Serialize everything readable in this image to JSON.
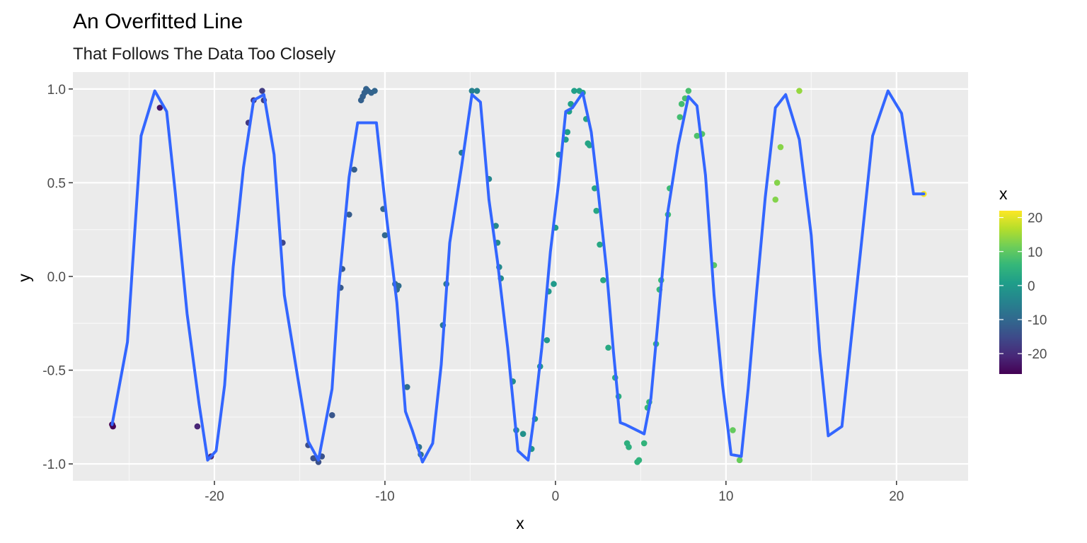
{
  "chart_data": {
    "type": "scatter",
    "title": "An Overfitted Line",
    "subtitle": "That Follows The Data Too Closely",
    "xlabel": "x",
    "ylabel": "y",
    "xlim": [
      -28.3,
      24.2
    ],
    "ylim": [
      -1.09,
      1.09
    ],
    "x_ticks": [
      -20,
      -10,
      0,
      10,
      20
    ],
    "x_tick_labels": [
      "-20",
      "-10",
      "0",
      "10",
      "20"
    ],
    "y_ticks": [
      -1.0,
      -0.5,
      0.0,
      0.5,
      1.0
    ],
    "y_tick_labels": [
      "-1.0",
      "-0.5",
      "0.0",
      "0.5",
      "1.0"
    ],
    "grid": true,
    "background": "#ebebeb",
    "colorscale": {
      "title": "x",
      "palette": "viridis",
      "min": -26,
      "max": 22,
      "ticks": [
        20,
        10,
        0,
        -10,
        -20
      ],
      "tick_labels": [
        "20",
        "10",
        "0",
        "-10",
        "-20"
      ],
      "colors": [
        "#440154",
        "#482878",
        "#3e4989",
        "#31688e",
        "#26828e",
        "#1f9e89",
        "#35b779",
        "#6ece58",
        "#b5de2b",
        "#fde725"
      ]
    },
    "points": {
      "x": [
        -26.0,
        -25.95,
        -23.2,
        -21.0,
        -20.2,
        -18.0,
        -17.7,
        -17.2,
        -17.1,
        -16.0,
        -14.5,
        -14.2,
        -14.0,
        -13.9,
        -13.7,
        -13.1,
        -12.6,
        -12.5,
        -12.1,
        -11.8,
        -11.4,
        -11.3,
        -11.2,
        -11.1,
        -11.0,
        -10.8,
        -10.6,
        -10.1,
        -10.0,
        -9.4,
        -9.3,
        -9.2,
        -8.7,
        -8.0,
        -7.9,
        -6.6,
        -6.4,
        -5.5,
        -4.9,
        -4.6,
        -3.9,
        -3.5,
        -3.4,
        -3.3,
        -3.2,
        -2.5,
        -2.3,
        -1.9,
        -1.4,
        -1.2,
        -0.9,
        -0.5,
        -0.4,
        -0.1,
        0.0,
        0.2,
        0.6,
        0.7,
        0.8,
        0.9,
        1.1,
        1.4,
        1.6,
        1.8,
        1.9,
        2.0,
        2.3,
        2.4,
        2.6,
        2.8,
        3.1,
        3.5,
        3.7,
        4.2,
        4.3,
        4.8,
        4.9,
        5.2,
        5.4,
        5.5,
        5.9,
        6.1,
        6.2,
        6.6,
        6.7,
        7.3,
        7.4,
        7.6,
        7.8,
        8.3,
        8.6,
        9.3,
        10.4,
        10.8,
        12.9,
        13.0,
        13.2,
        14.3,
        21.6
      ],
      "y": [
        -0.79,
        -0.8,
        0.9,
        -0.8,
        -0.96,
        0.82,
        0.94,
        0.99,
        0.94,
        0.18,
        -0.9,
        -0.97,
        -0.97,
        -0.99,
        -0.96,
        -0.74,
        -0.06,
        0.04,
        0.33,
        0.57,
        0.94,
        0.96,
        0.98,
        1.0,
        0.99,
        0.98,
        0.99,
        0.36,
        0.22,
        -0.04,
        -0.07,
        -0.05,
        -0.59,
        -0.91,
        -0.95,
        -0.26,
        -0.04,
        0.66,
        0.99,
        0.99,
        0.52,
        0.27,
        0.18,
        0.05,
        -0.01,
        -0.56,
        -0.82,
        -0.84,
        -0.92,
        -0.76,
        -0.48,
        -0.34,
        -0.08,
        -0.04,
        0.26,
        0.65,
        0.73,
        0.77,
        0.88,
        0.92,
        0.99,
        0.99,
        0.98,
        0.84,
        0.71,
        0.7,
        0.47,
        0.35,
        0.17,
        -0.02,
        -0.38,
        -0.54,
        -0.64,
        -0.89,
        -0.91,
        -0.99,
        -0.98,
        -0.89,
        -0.7,
        -0.67,
        -0.36,
        -0.07,
        -0.02,
        0.33,
        0.47,
        0.85,
        0.92,
        0.95,
        0.99,
        0.75,
        0.76,
        0.06,
        -0.82,
        -0.98,
        0.41,
        0.5,
        0.69,
        0.99,
        0.44
      ]
    },
    "line": {
      "x": [
        -26.0,
        -25.1,
        -24.3,
        -23.5,
        -22.8,
        -22.3,
        -21.6,
        -20.9,
        -20.4,
        -19.9,
        -19.4,
        -18.9,
        -18.3,
        -17.7,
        -17.1,
        -16.5,
        -15.9,
        -15.2,
        -14.5,
        -13.9,
        -13.1,
        -12.7,
        -12.1,
        -11.6,
        -11.3,
        -10.5,
        -9.9,
        -9.3,
        -8.8,
        -8.4,
        -7.8,
        -7.2,
        -6.7,
        -6.2,
        -5.5,
        -4.9,
        -4.4,
        -3.9,
        -3.4,
        -2.8,
        -2.2,
        -1.6,
        -1.3,
        -0.8,
        -0.3,
        0.2,
        0.6,
        1.0,
        1.6,
        2.1,
        2.5,
        3.0,
        3.4,
        3.8,
        4.1,
        5.2,
        5.6,
        6.1,
        6.6,
        7.2,
        7.8,
        8.3,
        8.8,
        9.3,
        9.8,
        10.3,
        10.9,
        11.3,
        11.8,
        12.3,
        12.9,
        13.5,
        14.3,
        15.0,
        15.5,
        16.0,
        16.8,
        17.9,
        18.6,
        19.5,
        20.3,
        21.0,
        21.6
      ],
      "y": [
        -0.79,
        -0.35,
        0.75,
        0.99,
        0.88,
        0.45,
        -0.2,
        -0.68,
        -0.98,
        -0.93,
        -0.58,
        0.05,
        0.58,
        0.94,
        0.97,
        0.65,
        -0.1,
        -0.49,
        -0.88,
        -0.98,
        -0.6,
        -0.05,
        0.53,
        0.82,
        0.82,
        0.82,
        0.31,
        -0.14,
        -0.72,
        -0.82,
        -0.99,
        -0.89,
        -0.47,
        0.18,
        0.59,
        0.97,
        0.93,
        0.41,
        0.08,
        -0.38,
        -0.93,
        -0.98,
        -0.78,
        -0.38,
        0.13,
        0.51,
        0.88,
        0.9,
        0.98,
        0.77,
        0.46,
        0.03,
        -0.4,
        -0.78,
        -0.79,
        -0.84,
        -0.65,
        -0.15,
        0.35,
        0.7,
        0.96,
        0.91,
        0.54,
        -0.1,
        -0.58,
        -0.95,
        -0.96,
        -0.6,
        -0.08,
        0.42,
        0.9,
        0.97,
        0.73,
        0.22,
        -0.4,
        -0.85,
        -0.8,
        0.14,
        0.75,
        0.99,
        0.87,
        0.44,
        0.44
      ],
      "color": "#3366ff"
    }
  }
}
